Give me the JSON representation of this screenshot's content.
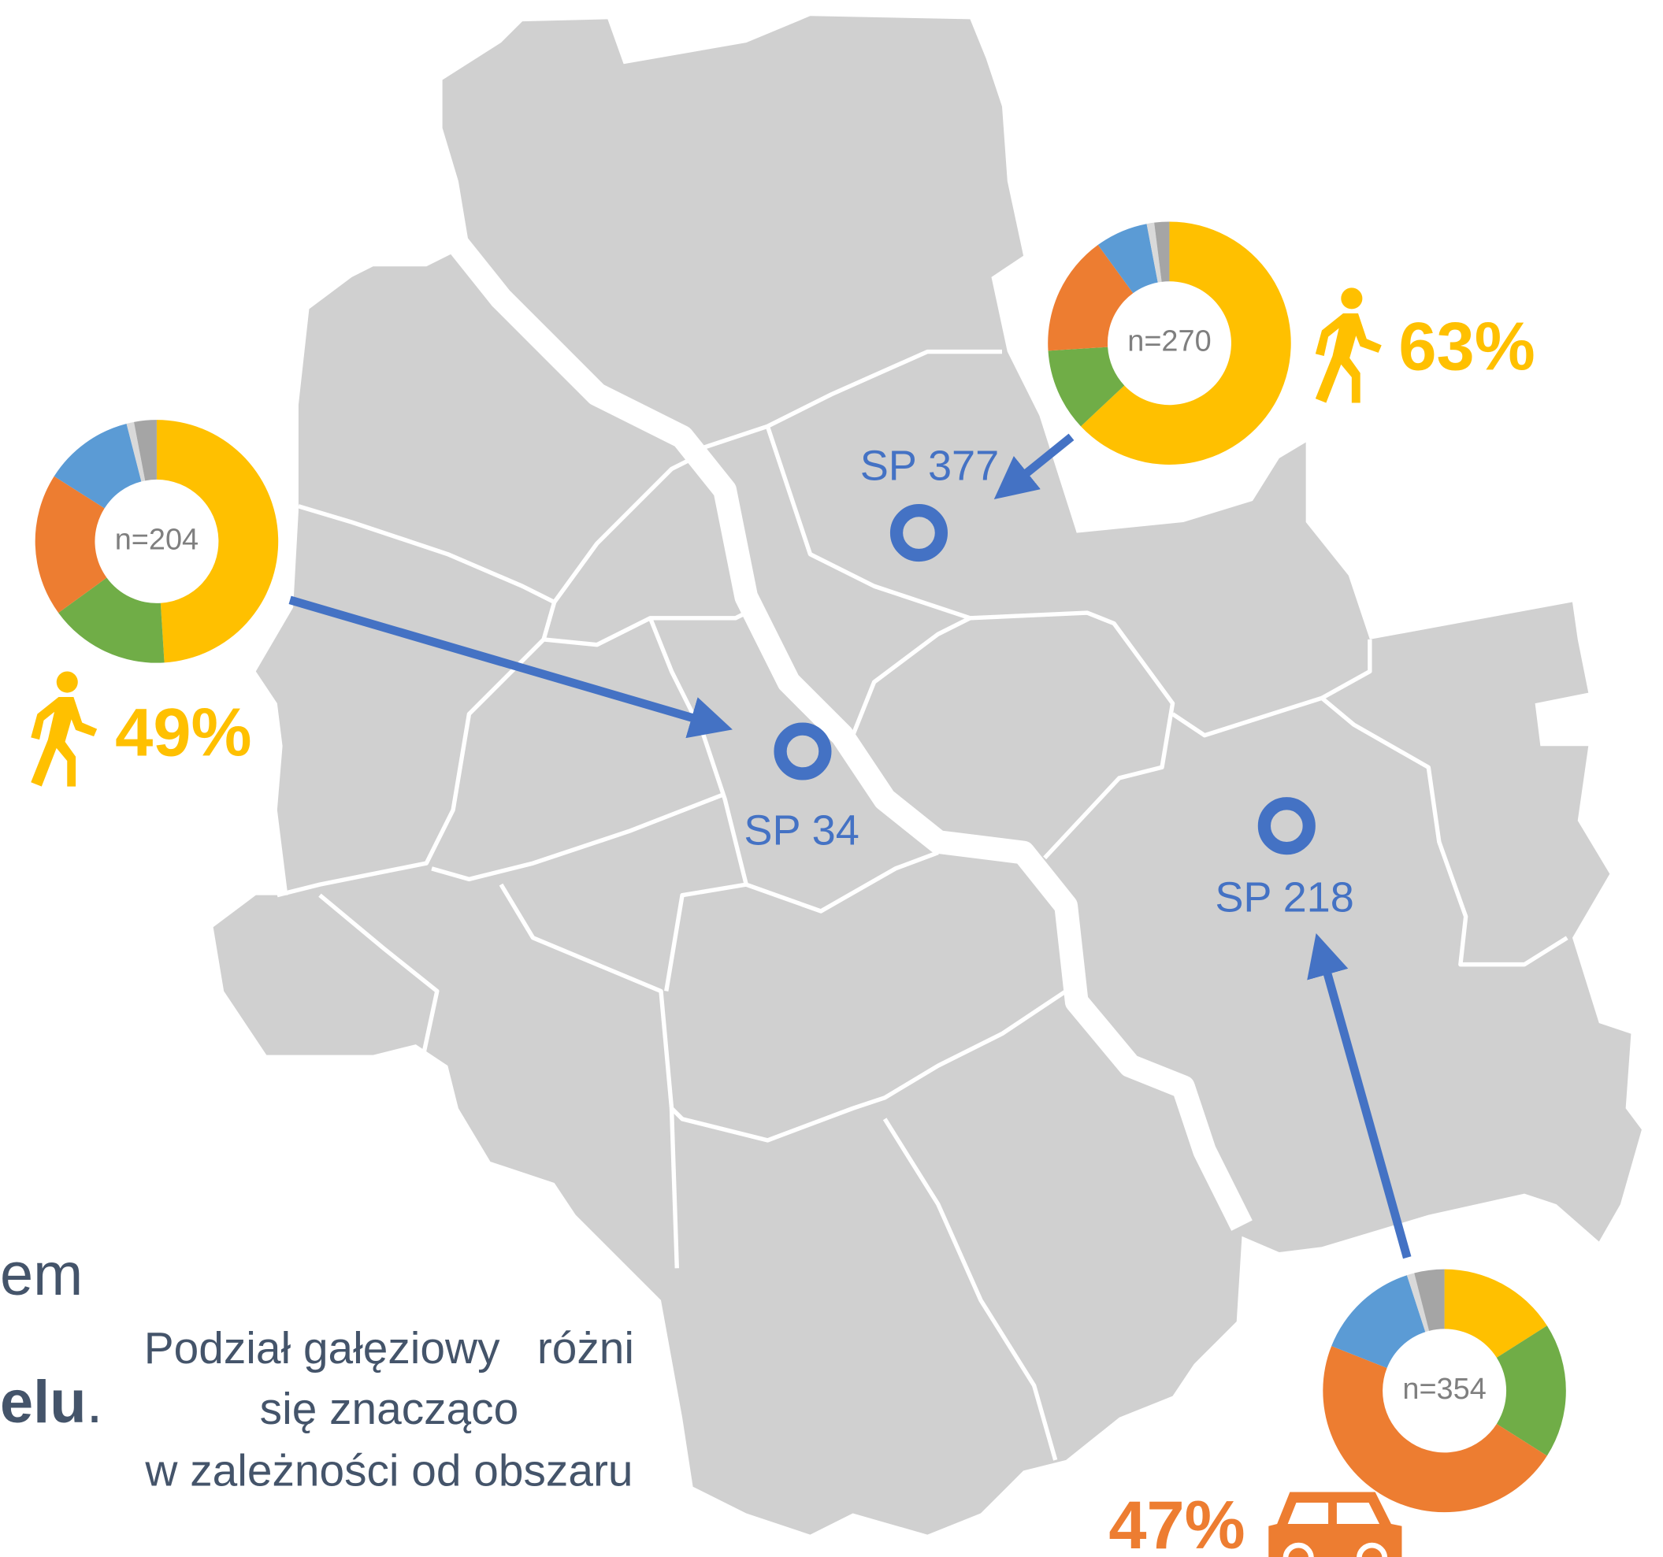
{
  "texts": {
    "left_fragment_1": "em",
    "left_fragment_2": "elu",
    "left_fragment_2_end": ".",
    "caption": [
      "Podział gałęziowy   różni",
      "się znacząco",
      "w zależności od obszaru"
    ]
  },
  "schools": [
    {
      "name": "SP 377"
    },
    {
      "name": "SP 34"
    },
    {
      "name": "SP 218"
    }
  ],
  "donuts": [
    {
      "label": "n=204",
      "share": "49%",
      "values": [
        49,
        16,
        19,
        12,
        1,
        3
      ],
      "colors": [
        "#ffc000",
        "#70ad47",
        "#ed7d31",
        "#5b9bd5",
        "#d9d9d9",
        "#a5a5a5"
      ]
    },
    {
      "label": "n=270",
      "share": "63%",
      "values": [
        63,
        11,
        16,
        7,
        1,
        2
      ],
      "colors": [
        "#ffc000",
        "#70ad47",
        "#ed7d31",
        "#5b9bd5",
        "#d9d9d9",
        "#a5a5a5"
      ]
    },
    {
      "label": "n=354",
      "share": "47%",
      "values": [
        16,
        18,
        47,
        14,
        1,
        4
      ],
      "colors": [
        "#ffc000",
        "#70ad47",
        "#ed7d31",
        "#5b9bd5",
        "#d9d9d9",
        "#a5a5a5"
      ]
    }
  ]
}
